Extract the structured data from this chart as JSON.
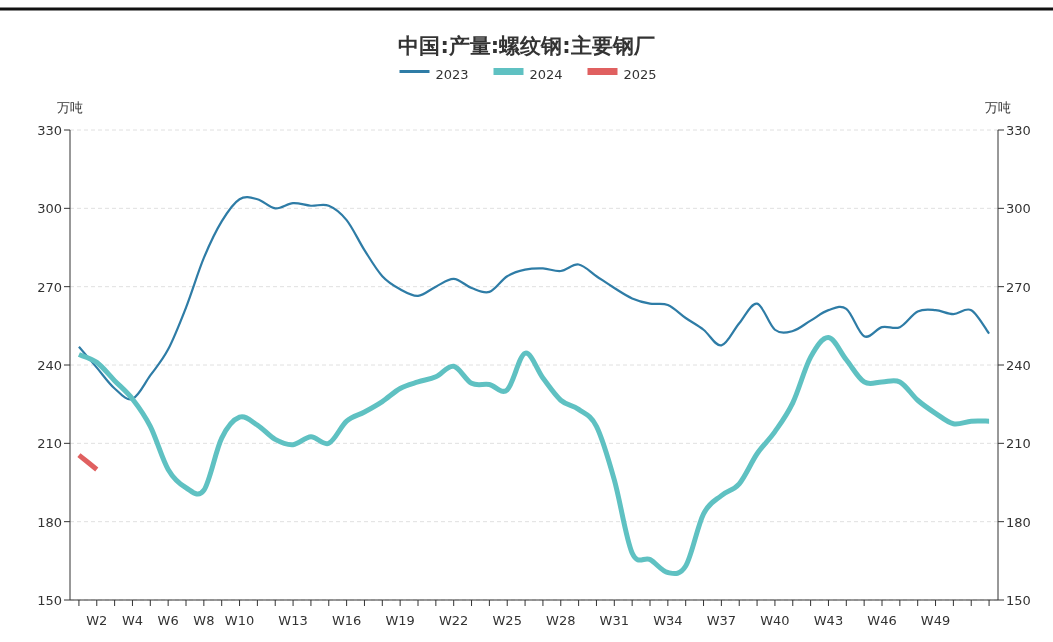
{
  "chart_data": {
    "type": "line",
    "title": "中国:产量:螺纹钢:主要钢厂",
    "ylabel": "万吨",
    "y2label": "万吨",
    "categories": [
      null,
      "W2",
      null,
      "W4",
      null,
      "W6",
      null,
      "W8",
      null,
      "W10",
      null,
      null,
      "W13",
      null,
      null,
      "W16",
      null,
      null,
      "W19",
      null,
      null,
      "W22",
      null,
      null,
      "W25",
      null,
      null,
      "W28",
      null,
      null,
      "W31",
      null,
      null,
      "W34",
      null,
      null,
      "W37",
      null,
      null,
      "W40",
      null,
      null,
      "W43",
      null,
      null,
      "W46",
      null,
      null,
      "W49",
      null,
      null,
      null
    ],
    "series": [
      {
        "name": "2023",
        "color": "#2e7ca6",
        "values": [
          247,
          239,
          231,
          227,
          236,
          246,
          262,
          281,
          295,
          303.5,
          303.5,
          300,
          302,
          301,
          301,
          295.5,
          284,
          274,
          269,
          266.5,
          270,
          273,
          269.5,
          268,
          274,
          276.5,
          277,
          276,
          278.5,
          274,
          269.5,
          265.5,
          263.5,
          263,
          258,
          253.5,
          247.5,
          256,
          263.5,
          253.5,
          253,
          257,
          261,
          261.5,
          251,
          254.5,
          254.5,
          260.5,
          261,
          259.5,
          261,
          252
        ]
      },
      {
        "name": "2024",
        "color": "#5fc1c2",
        "values": [
          244,
          241,
          234,
          227,
          216.5,
          200,
          193,
          192,
          212,
          220,
          217,
          211.5,
          209.5,
          212.5,
          210,
          218.5,
          222,
          226,
          231,
          233.5,
          235.5,
          239.5,
          233,
          232.5,
          230.5,
          244.5,
          235,
          226.5,
          223,
          216.5,
          196,
          168,
          165.5,
          160.5,
          163,
          183,
          190,
          194.5,
          206,
          214.5,
          225.5,
          243,
          250.5,
          242,
          233.5,
          233.5,
          233.5,
          226.5,
          221.5,
          217.5,
          218.5,
          218.5
        ]
      },
      {
        "name": "2025",
        "color": "#e06060",
        "values": [
          205.5,
          200,
          null,
          null,
          null,
          null,
          null,
          null,
          null,
          null,
          null,
          null,
          null,
          null,
          null,
          null,
          null,
          null,
          null,
          null,
          null,
          null,
          null,
          null,
          null,
          null,
          null,
          null,
          null,
          null,
          null,
          null,
          null,
          null,
          null,
          null,
          null,
          null,
          null,
          null,
          null,
          null,
          null,
          null,
          null,
          null,
          null,
          null,
          null,
          null,
          null,
          null
        ]
      }
    ],
    "ylim": [
      150,
      330
    ],
    "yticks": [
      150,
      180,
      210,
      240,
      270,
      300,
      330
    ],
    "y2lim": [
      150,
      330
    ],
    "y2ticks": [
      150,
      180,
      210,
      240,
      270,
      300,
      330
    ],
    "grid": "y",
    "legend": "top",
    "marker": "none",
    "line_style": "solid"
  }
}
